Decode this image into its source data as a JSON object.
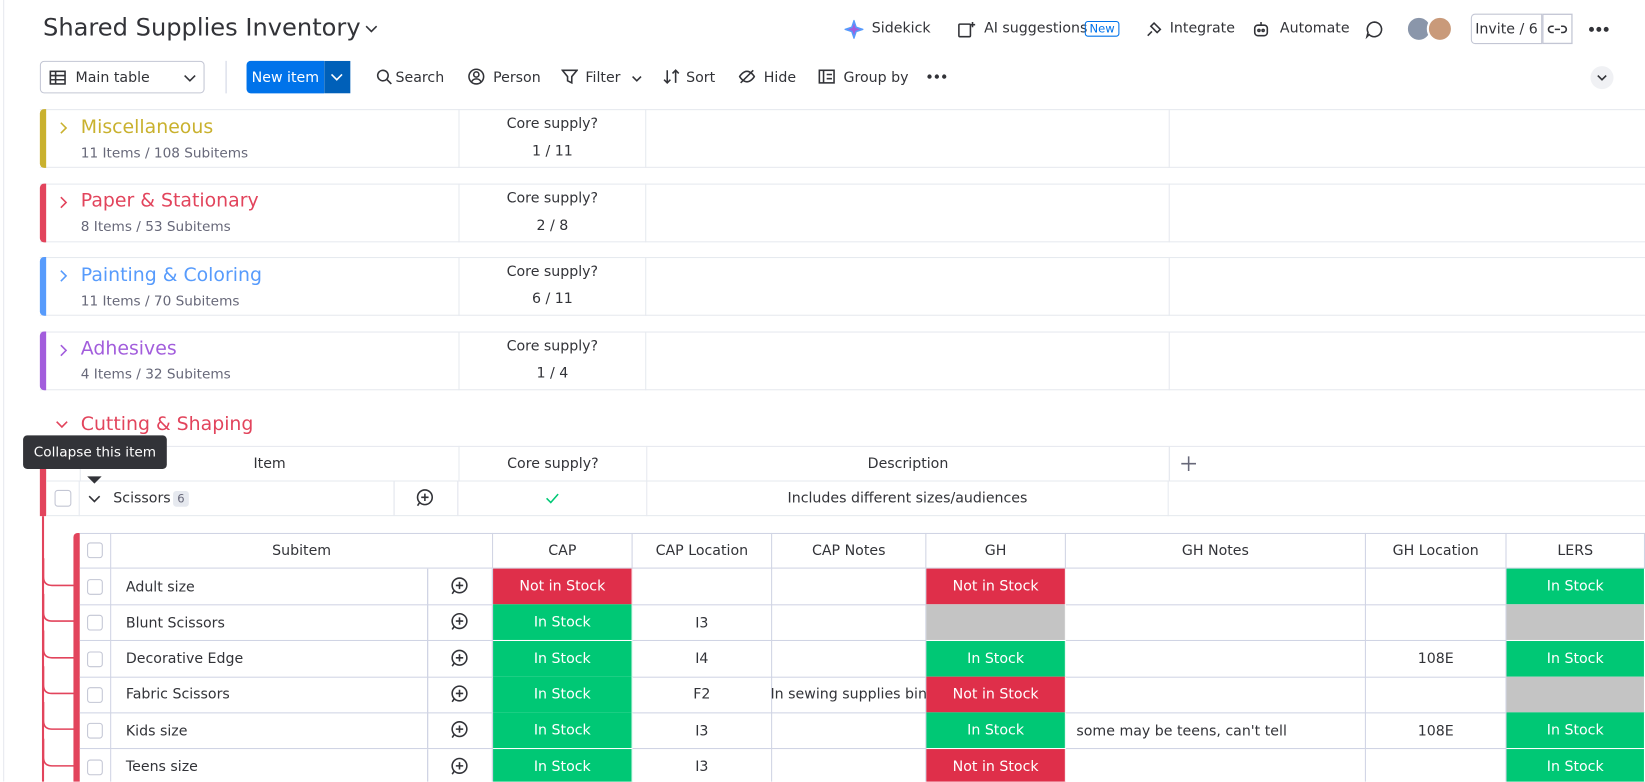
{
  "header": {
    "title": "Shared Supplies Inventory",
    "sidekick": "Sidekick",
    "ai_suggestions": "AI suggestions",
    "new_badge": "New",
    "integrate": "Integrate",
    "automate": "Automate",
    "invite": "Invite / 6"
  },
  "toolbar": {
    "view": "Main table",
    "new_item": "New item",
    "search": "Search",
    "person": "Person",
    "filter": "Filter",
    "sort": "Sort",
    "hide": "Hide",
    "group_by": "Group by"
  },
  "groups": [
    {
      "name": "Miscellaneous",
      "counts": "11 Items / 108 Subitems",
      "summary_label": "Core supply?",
      "summary_value": "1 / 11",
      "color": "#c9b12e"
    },
    {
      "name": "Paper & Stationary",
      "counts": "8 Items / 53 Subitems",
      "summary_label": "Core supply?",
      "summary_value": "2 / 8",
      "color": "#e2445c"
    },
    {
      "name": "Painting & Coloring",
      "counts": "11 Items / 70 Subitems",
      "summary_label": "Core supply?",
      "summary_value": "6 / 11",
      "color": "#579bfc"
    },
    {
      "name": "Adhesives",
      "counts": "4 Items / 32 Subitems",
      "summary_label": "Core supply?",
      "summary_value": "1 / 4",
      "color": "#a25ddc"
    }
  ],
  "expanded_group": {
    "name": "Cutting & Shaping",
    "color": "#e2445c",
    "tooltip": "Collapse this item",
    "columns": [
      "Item",
      "Core supply?",
      "Description"
    ],
    "item": {
      "name": "Scissors",
      "subitem_count": "6",
      "description": "Includes different sizes/audiences"
    }
  },
  "subitems": {
    "columns": [
      "Subitem",
      "CAP",
      "CAP Location",
      "CAP Notes",
      "GH",
      "GH Notes",
      "GH Location",
      "LERS"
    ],
    "status_colors": {
      "In Stock": "#00c875",
      "Not in Stock": "#df2f4a"
    },
    "empty_status_color": "#c4c4c4",
    "rows": [
      [
        "Adult size",
        "Not in Stock",
        null,
        null,
        "Not in Stock",
        null,
        null,
        "In Stock"
      ],
      [
        "Blunt Scissors",
        "In Stock",
        "I3",
        null,
        null,
        null,
        null,
        null
      ],
      [
        "Decorative Edge",
        "In Stock",
        "I4",
        null,
        "In Stock",
        null,
        "108E",
        "In Stock"
      ],
      [
        "Fabric Scissors",
        "In Stock",
        "F2",
        "In sewing supplies bin",
        "Not in Stock",
        null,
        null,
        null
      ],
      [
        "Kids size",
        "In Stock",
        "I3",
        null,
        "In Stock",
        "some may be teens, can't tell",
        "108E",
        "In Stock"
      ],
      [
        "Teens size",
        "In Stock",
        "I3",
        null,
        "Not in Stock",
        null,
        null,
        "In Stock"
      ]
    ]
  }
}
